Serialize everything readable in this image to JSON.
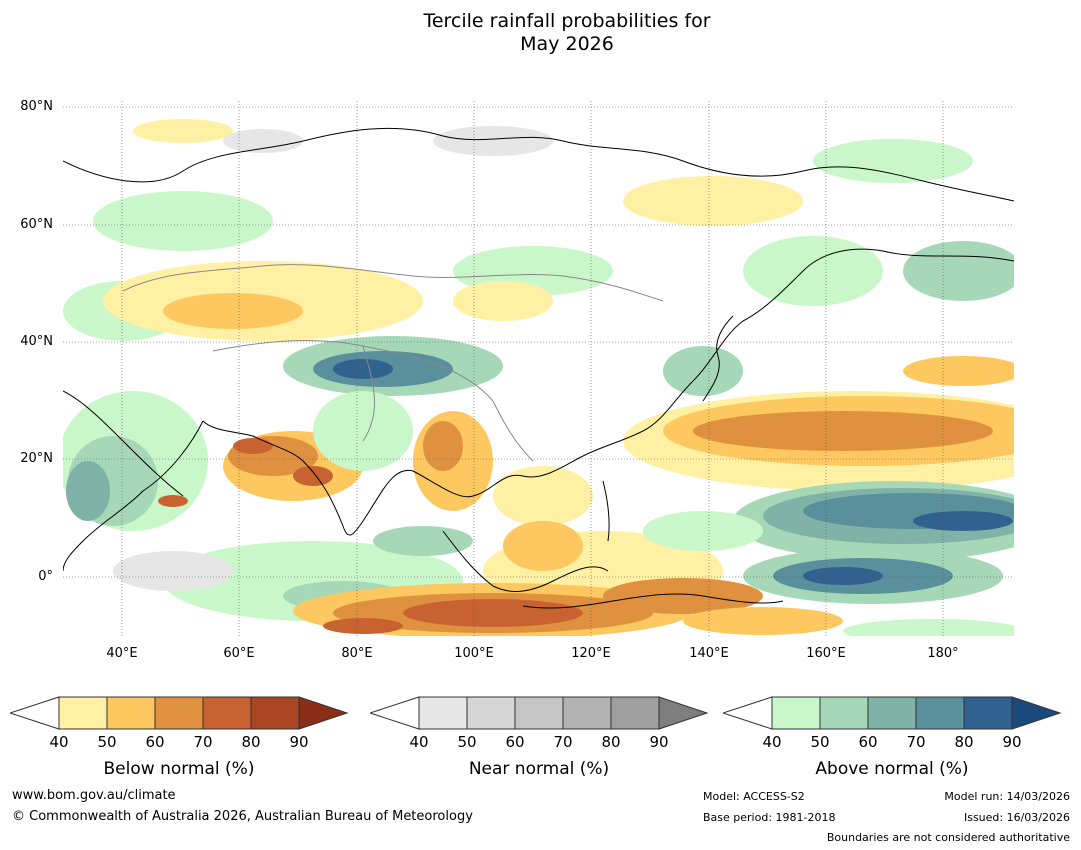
{
  "title": {
    "line1": "Tercile rainfall probabilities for",
    "line2": "May 2026"
  },
  "map": {
    "lat_labels": [
      "80°N",
      "60°N",
      "40°N",
      "20°N",
      "0°"
    ],
    "lon_labels": [
      "40°E",
      "60°E",
      "80°E",
      "100°E",
      "120°E",
      "140°E",
      "160°E",
      "180°"
    ]
  },
  "legend": {
    "below": {
      "label": "Below normal (%)",
      "ticks": [
        "40",
        "50",
        "60",
        "70",
        "80",
        "90"
      ],
      "colors": [
        "#fff0a3",
        "#fdc85f",
        "#e0913f",
        "#c96231",
        "#a94624",
        "#8a2e17"
      ]
    },
    "near": {
      "label": "Near normal (%)",
      "ticks": [
        "40",
        "50",
        "60",
        "70",
        "80",
        "90"
      ],
      "colors": [
        "#e6e6e6",
        "#d6d6d6",
        "#c6c6c6",
        "#b2b2b2",
        "#9f9f9f",
        "#7e7e7e"
      ]
    },
    "above": {
      "label": "Above normal (%)",
      "ticks": [
        "40",
        "50",
        "60",
        "70",
        "80",
        "90"
      ],
      "colors": [
        "#c9f7c9",
        "#a6d8b8",
        "#7fb3a8",
        "#5a8f9c",
        "#31628f",
        "#1a4a7c"
      ]
    }
  },
  "footer": {
    "website": "www.bom.gov.au/climate",
    "copyright": "© Commonwealth of Australia 2026, Australian Bureau of Meteorology",
    "model": "Model: ACCESS-S2",
    "base_period": "Base period: 1981-2018",
    "model_run": "Model run: 14/03/2026",
    "issued": "Issued: 16/03/2026",
    "boundaries": "Boundaries are not considered authoritative"
  }
}
